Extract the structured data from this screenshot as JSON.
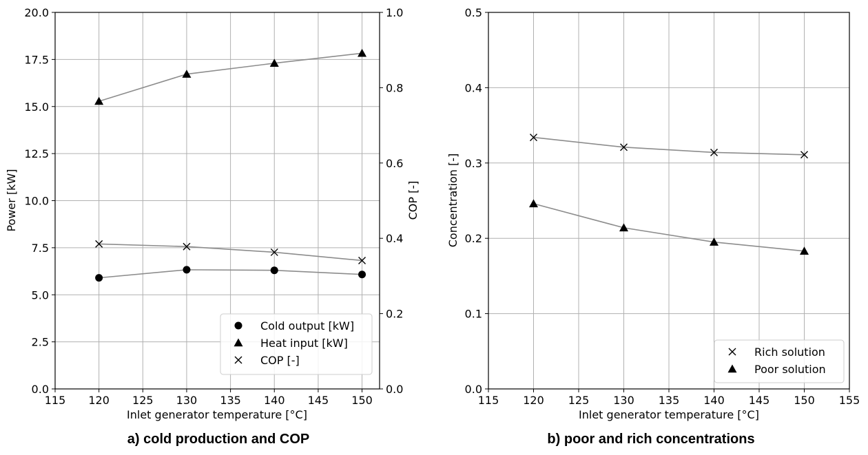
{
  "chart_data": [
    {
      "type": "line",
      "caption": "a) cold production and COP",
      "xlabel": "Inlet generator temperature [°C]",
      "ylabel": "Power [kW]",
      "y2label": "COP [-]",
      "xlim": [
        115,
        152
      ],
      "ylim": [
        0,
        20
      ],
      "y2lim": [
        0,
        1
      ],
      "xticks": [
        "115",
        "120",
        "125",
        "130",
        "135",
        "140",
        "145",
        "150"
      ],
      "yticks": [
        "0.0",
        "2.5",
        "5.0",
        "7.5",
        "10.0",
        "12.5",
        "15.0",
        "17.5",
        "20.0"
      ],
      "y2ticks": [
        "0.0",
        "0.2",
        "0.4",
        "0.6",
        "0.8",
        "1.0"
      ],
      "grid": true,
      "legend_position": "bottom-right",
      "series": [
        {
          "name": "Cold output [kW]",
          "marker": "circle",
          "axis": "left",
          "x": [
            120,
            130,
            140,
            150
          ],
          "values": [
            5.9,
            6.33,
            6.3,
            6.08
          ],
          "line": true
        },
        {
          "name": "Heat input [kW]",
          "marker": "triangle",
          "axis": "left",
          "x": [
            120,
            130,
            140,
            150
          ],
          "values": [
            15.28,
            16.72,
            17.3,
            17.83
          ],
          "line": true
        },
        {
          "name": "COP [-]",
          "marker": "x",
          "axis": "right",
          "x": [
            120,
            130,
            140,
            150
          ],
          "values": [
            0.385,
            0.378,
            0.363,
            0.341
          ],
          "line": true
        }
      ]
    },
    {
      "type": "line",
      "caption": "b) poor and rich concentrations",
      "xlabel": "Inlet generator temperature [°C]",
      "ylabel": "Concentration [-]",
      "xlim": [
        115,
        155
      ],
      "ylim": [
        0,
        0.5
      ],
      "xticks": [
        "115",
        "120",
        "125",
        "130",
        "135",
        "140",
        "145",
        "150",
        "155"
      ],
      "yticks": [
        "0.0",
        "0.1",
        "0.2",
        "0.3",
        "0.4",
        "0.5"
      ],
      "grid": true,
      "legend_position": "bottom-right",
      "series": [
        {
          "name": "Rich solution",
          "marker": "x",
          "axis": "left",
          "x": [
            120,
            130,
            140,
            150
          ],
          "values": [
            0.334,
            0.321,
            0.314,
            0.311
          ],
          "line": true
        },
        {
          "name": "Poor solution",
          "marker": "triangle",
          "axis": "left",
          "x": [
            120,
            130,
            140,
            150
          ],
          "values": [
            0.246,
            0.214,
            0.195,
            0.183
          ],
          "line": true
        }
      ]
    }
  ],
  "colors": {
    "line": "#8c8c8c",
    "grid": "#b0b0b0",
    "marker": "#000000",
    "legend_border": "#cccccc"
  }
}
